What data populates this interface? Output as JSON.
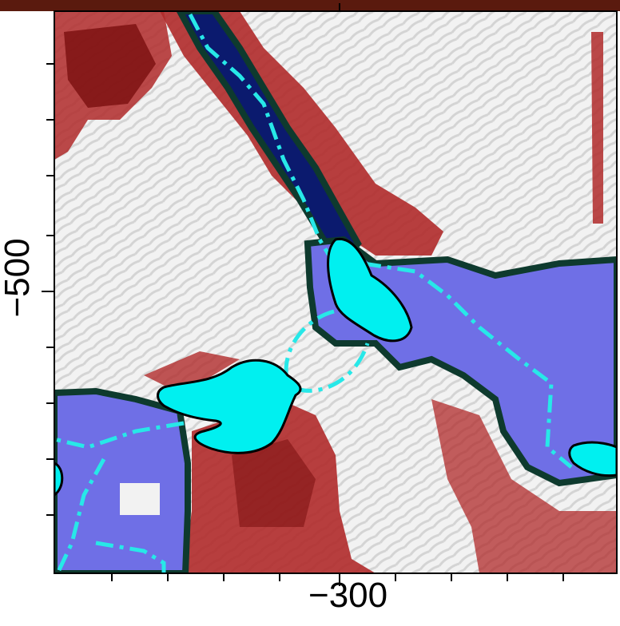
{
  "axes": {
    "x_tick_label": "−300",
    "y_tick_label": "−500"
  },
  "colors": {
    "top_strip": "#5a1a0e",
    "terrain_base": "#f2f2f2",
    "terrain_shade": "#d4d4d4",
    "elevated_dark": "#7a0f0f",
    "elevated_mid": "#b02a2a",
    "elevated_light": "#d98c8c",
    "lowered_dark": "#0b1a6e",
    "lowered_fill": "#6f6fe6",
    "rim": "#0e3a2e",
    "lake_fill": "#00f0f0",
    "lake_outline": "#000000",
    "flowpath": "#27e8e8",
    "frame": "#000000"
  },
  "legend": []
}
